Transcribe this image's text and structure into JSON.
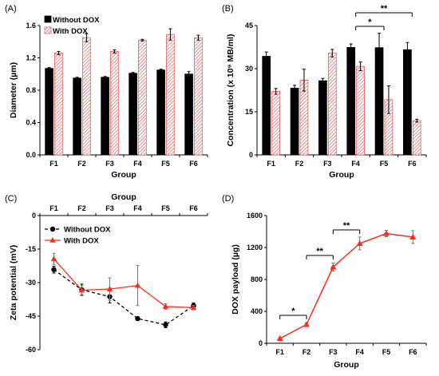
{
  "chart_data": [
    {
      "panel": "(A)",
      "type": "bar",
      "categories": [
        "F1",
        "F2",
        "F3",
        "F4",
        "F5",
        "F6"
      ],
      "series": [
        {
          "name": "Without DOX",
          "values": [
            1.07,
            0.95,
            0.96,
            1.01,
            1.05,
            1.0
          ],
          "errors": [
            0.01,
            0.01,
            0.01,
            0.01,
            0.01,
            0.03
          ],
          "color": "#000000"
        },
        {
          "name": "With DOX",
          "values": [
            1.26,
            1.45,
            1.28,
            1.42,
            1.49,
            1.45
          ],
          "errors": [
            0.02,
            0.05,
            0.02,
            0.01,
            0.07,
            0.03
          ],
          "color": "#e87a7a"
        }
      ],
      "ylim": [
        0,
        1.6
      ],
      "yticks": [
        "0.0",
        "0.4",
        "0.8",
        "1.2",
        "1.6"
      ],
      "xlabel": "Group",
      "ylabel": "Diameter (µm)",
      "legend": "top-left"
    },
    {
      "panel": "(B)",
      "type": "bar",
      "categories": [
        "F1",
        "F2",
        "F3",
        "F4",
        "F5",
        "F6"
      ],
      "series": [
        {
          "name": "Without DOX",
          "values": [
            34.3,
            23.2,
            25.8,
            37.4,
            37.3,
            36.6
          ],
          "errors": [
            1.5,
            1.0,
            0.8,
            1.2,
            5.0,
            2.5
          ],
          "color": "#000000"
        },
        {
          "name": "With DOX",
          "values": [
            22.1,
            26.0,
            35.4,
            30.8,
            19.2,
            11.9
          ],
          "errors": [
            1.0,
            3.8,
            1.3,
            1.5,
            4.8,
            0.5
          ],
          "color": "#e87a7a"
        }
      ],
      "ylim": [
        0,
        45
      ],
      "yticks": [
        "0",
        "15",
        "30",
        "45"
      ],
      "xlabel": "Group",
      "ylabel": "Concentration (x 10⁹ MB/ml)",
      "annotations": [
        {
          "from": "F4",
          "to": "F6",
          "text": "**"
        },
        {
          "from": "F4",
          "to": "F5",
          "text": "*"
        }
      ]
    },
    {
      "panel": "(C)",
      "type": "line",
      "categories": [
        "F1",
        "F2",
        "F3",
        "F4",
        "F5",
        "F6"
      ],
      "series": [
        {
          "name": "Without DOX",
          "values": [
            -24.2,
            -33.2,
            -36.3,
            -46.1,
            -48.9,
            -40.3
          ],
          "errors": [
            1.5,
            2.5,
            2.8,
            0.8,
            1.3,
            1.2
          ],
          "color": "#000000",
          "dash": true
        },
        {
          "name": "With DOX",
          "values": [
            -19.4,
            -33.4,
            -32.9,
            -31.3,
            -40.7,
            -41.2
          ],
          "errors": [
            2.5,
            2.0,
            5.0,
            9.0,
            1.2,
            1.0
          ],
          "color": "#ff2a1a",
          "dash": false
        }
      ],
      "ylim": [
        -60,
        0
      ],
      "yticks": [
        "0",
        "-15",
        "-30",
        "-45",
        "-60"
      ],
      "xlabel": "Group",
      "ylabel": "Zeta potential (mV)",
      "legend": "top-left",
      "x_axis_position": "top"
    },
    {
      "panel": "(D)",
      "type": "line",
      "categories": [
        "F1",
        "F2",
        "F3",
        "F4",
        "F5",
        "F6"
      ],
      "series": [
        {
          "name": "",
          "values": [
            60,
            235,
            955,
            1250,
            1375,
            1330
          ],
          "errors": [
            10,
            20,
            50,
            80,
            40,
            80
          ],
          "color": "#ff2a1a"
        }
      ],
      "ylim": [
        0,
        1600
      ],
      "yticks": [
        "0",
        "400",
        "800",
        "1200",
        "1600"
      ],
      "xlabel": "Group",
      "ylabel": "DOX payload (µg)",
      "annotations": [
        {
          "from": "F1",
          "to": "F2",
          "text": "*"
        },
        {
          "from": "F2",
          "to": "F3",
          "text": "**"
        },
        {
          "from": "F3",
          "to": "F4",
          "text": "**"
        }
      ]
    }
  ]
}
